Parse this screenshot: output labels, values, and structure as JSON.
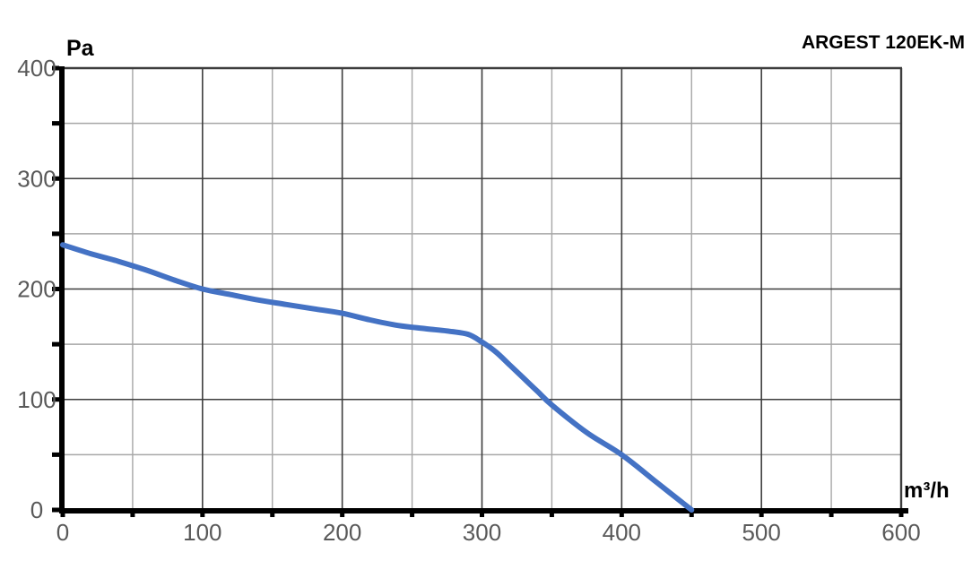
{
  "page": {
    "background": "#ffffff"
  },
  "header": {
    "model": "ARGEST 120EK-M"
  },
  "axes": {
    "y_unit": "Pa",
    "x_unit": "m³/h"
  },
  "chart_data": {
    "type": "line",
    "title": "ARGEST 120EK-M",
    "xlabel": "m³/h",
    "ylabel": "Pa",
    "xlim": [
      0,
      600
    ],
    "ylim": [
      0,
      400
    ],
    "x_major_ticks": [
      0,
      100,
      200,
      300,
      400,
      500,
      600
    ],
    "x_tick_labels": [
      "0",
      "100",
      "200",
      "300",
      "400",
      "500",
      "600"
    ],
    "y_major_ticks": [
      0,
      100,
      200,
      300,
      400
    ],
    "y_tick_labels": [
      "0",
      "100",
      "200",
      "300",
      "400"
    ],
    "minor_tick_step": 50,
    "grid": "major+minor",
    "legend": "none",
    "series": [
      {
        "name": "ARGEST 120EK-M",
        "color": "#4472C4",
        "points": [
          [
            0,
            240
          ],
          [
            20,
            232
          ],
          [
            40,
            225
          ],
          [
            60,
            217
          ],
          [
            80,
            208
          ],
          [
            100,
            200
          ],
          [
            120,
            195
          ],
          [
            140,
            190
          ],
          [
            160,
            186
          ],
          [
            180,
            182
          ],
          [
            200,
            178
          ],
          [
            220,
            172
          ],
          [
            240,
            167
          ],
          [
            260,
            164
          ],
          [
            275,
            162
          ],
          [
            290,
            159
          ],
          [
            300,
            152
          ],
          [
            310,
            143
          ],
          [
            320,
            131
          ],
          [
            330,
            119
          ],
          [
            340,
            107
          ],
          [
            350,
            95
          ],
          [
            375,
            70
          ],
          [
            400,
            50
          ],
          [
            425,
            25
          ],
          [
            450,
            0
          ]
        ]
      }
    ],
    "colors": {
      "curve": "#4472C4",
      "grid_major": "#3d3d3d",
      "grid_minor": "#a6a6a6",
      "axis": "#000000",
      "tick_label": "#595959",
      "text": "#000000"
    }
  }
}
